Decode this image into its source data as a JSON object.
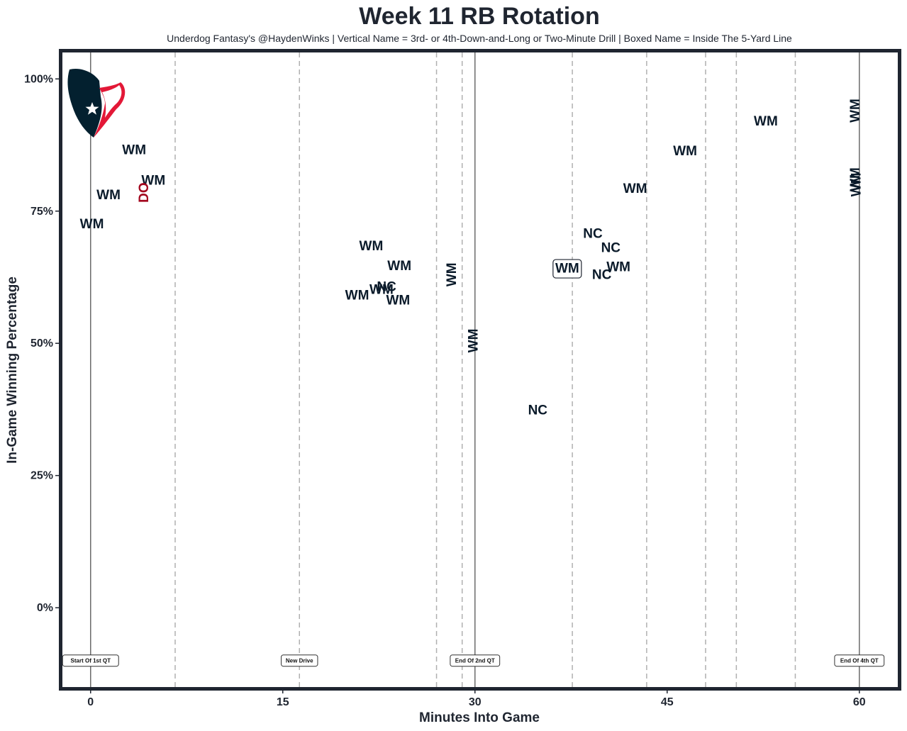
{
  "chart_data": {
    "type": "scatter",
    "title": "Week 11 RB Rotation",
    "subtitle": "Underdog Fantasy's @HaydenWinks | Vertical Name = 3rd- or 4th-Down-and-Long or Two-Minute Drill | Boxed Name = Inside The 5-Yard Line",
    "xlabel": "Minutes Into Game",
    "ylabel": "In-Game Winning Percentage",
    "xlim": [
      -2.2,
      63
    ],
    "ylim": [
      -15,
      105
    ],
    "x_ticks": [
      0,
      15,
      30,
      45,
      60
    ],
    "x_tick_labels": [
      "0",
      "15",
      "30",
      "45",
      "60"
    ],
    "y_ticks": [
      0,
      25,
      50,
      75,
      100
    ],
    "y_tick_labels": [
      "0%",
      "25%",
      "50%",
      "75%",
      "100%"
    ],
    "grid": false,
    "colors": {
      "primary": "#0a1a2a",
      "secondary": "#a3081f",
      "frame": "#1f2530"
    },
    "logo": {
      "team": "Houston Texans",
      "icon": "texans-bull-logo",
      "colors": [
        "#03202f",
        "#e31837"
      ]
    },
    "vlines": [
      {
        "x": 0,
        "style": "solid"
      },
      {
        "x": 6.6,
        "style": "dashed"
      },
      {
        "x": 16.3,
        "style": "dashed"
      },
      {
        "x": 27.0,
        "style": "dashed"
      },
      {
        "x": 29.0,
        "style": "dashed"
      },
      {
        "x": 30.0,
        "style": "solid"
      },
      {
        "x": 37.6,
        "style": "dashed"
      },
      {
        "x": 43.4,
        "style": "dashed"
      },
      {
        "x": 48.0,
        "style": "dashed"
      },
      {
        "x": 50.4,
        "style": "dashed"
      },
      {
        "x": 55.0,
        "style": "dashed"
      },
      {
        "x": 60.0,
        "style": "solid"
      }
    ],
    "event_labels": [
      {
        "x": 0,
        "label": "Start Of 1st QT"
      },
      {
        "x": 16.3,
        "label": "New Drive"
      },
      {
        "x": 30.0,
        "label": "End Of 2nd QT"
      },
      {
        "x": 60.0,
        "label": "End Of 4th QT"
      }
    ],
    "points": [
      {
        "x": 0.1,
        "y": 72.5,
        "label": "WM",
        "color": "primary",
        "vertical": false,
        "boxed": false
      },
      {
        "x": 1.4,
        "y": 78.0,
        "label": "WM",
        "color": "primary",
        "vertical": false,
        "boxed": false
      },
      {
        "x": 3.4,
        "y": 86.5,
        "label": "WM",
        "color": "primary",
        "vertical": false,
        "boxed": false
      },
      {
        "x": 4.9,
        "y": 80.7,
        "label": "WM",
        "color": "primary",
        "vertical": false,
        "boxed": false
      },
      {
        "x": 4.2,
        "y": 78.5,
        "label": "DO",
        "color": "secondary",
        "vertical": true,
        "boxed": false
      },
      {
        "x": 21.9,
        "y": 68.3,
        "label": "WM",
        "color": "primary",
        "vertical": false,
        "boxed": false
      },
      {
        "x": 24.1,
        "y": 64.6,
        "label": "WM",
        "color": "primary",
        "vertical": false,
        "boxed": false
      },
      {
        "x": 22.7,
        "y": 60.1,
        "label": "WM",
        "color": "primary",
        "vertical": false,
        "boxed": false
      },
      {
        "x": 23.1,
        "y": 60.6,
        "label": "NC",
        "color": "primary",
        "vertical": false,
        "boxed": false
      },
      {
        "x": 20.8,
        "y": 59.0,
        "label": "WM",
        "color": "primary",
        "vertical": false,
        "boxed": false
      },
      {
        "x": 24.0,
        "y": 58.1,
        "label": "WM",
        "color": "primary",
        "vertical": false,
        "boxed": false
      },
      {
        "x": 28.2,
        "y": 63.0,
        "label": "WM",
        "color": "primary",
        "vertical": true,
        "boxed": false
      },
      {
        "x": 29.9,
        "y": 50.5,
        "label": "WM",
        "color": "primary",
        "vertical": true,
        "boxed": false
      },
      {
        "x": 34.9,
        "y": 37.3,
        "label": "NC",
        "color": "primary",
        "vertical": false,
        "boxed": false
      },
      {
        "x": 37.2,
        "y": 64.1,
        "label": "WM",
        "color": "primary",
        "vertical": false,
        "boxed": true
      },
      {
        "x": 39.2,
        "y": 70.7,
        "label": "NC",
        "color": "primary",
        "vertical": false,
        "boxed": false
      },
      {
        "x": 40.6,
        "y": 68.0,
        "label": "NC",
        "color": "primary",
        "vertical": false,
        "boxed": false
      },
      {
        "x": 41.2,
        "y": 64.4,
        "label": "WM",
        "color": "primary",
        "vertical": false,
        "boxed": false
      },
      {
        "x": 39.9,
        "y": 62.9,
        "label": "NC",
        "color": "primary",
        "vertical": false,
        "boxed": false
      },
      {
        "x": 42.5,
        "y": 79.2,
        "label": "WM",
        "color": "primary",
        "vertical": false,
        "boxed": false
      },
      {
        "x": 46.4,
        "y": 86.3,
        "label": "WM",
        "color": "primary",
        "vertical": false,
        "boxed": false
      },
      {
        "x": 52.7,
        "y": 91.9,
        "label": "WM",
        "color": "primary",
        "vertical": false,
        "boxed": false
      },
      {
        "x": 59.7,
        "y": 94.0,
        "label": "WM",
        "color": "primary",
        "vertical": true,
        "boxed": false
      },
      {
        "x": 59.7,
        "y": 81.0,
        "label": "WM",
        "color": "primary",
        "vertical": true,
        "boxed": false
      },
      {
        "x": 59.8,
        "y": 80.0,
        "label": "WM",
        "color": "primary",
        "vertical": true,
        "boxed": false
      }
    ]
  }
}
